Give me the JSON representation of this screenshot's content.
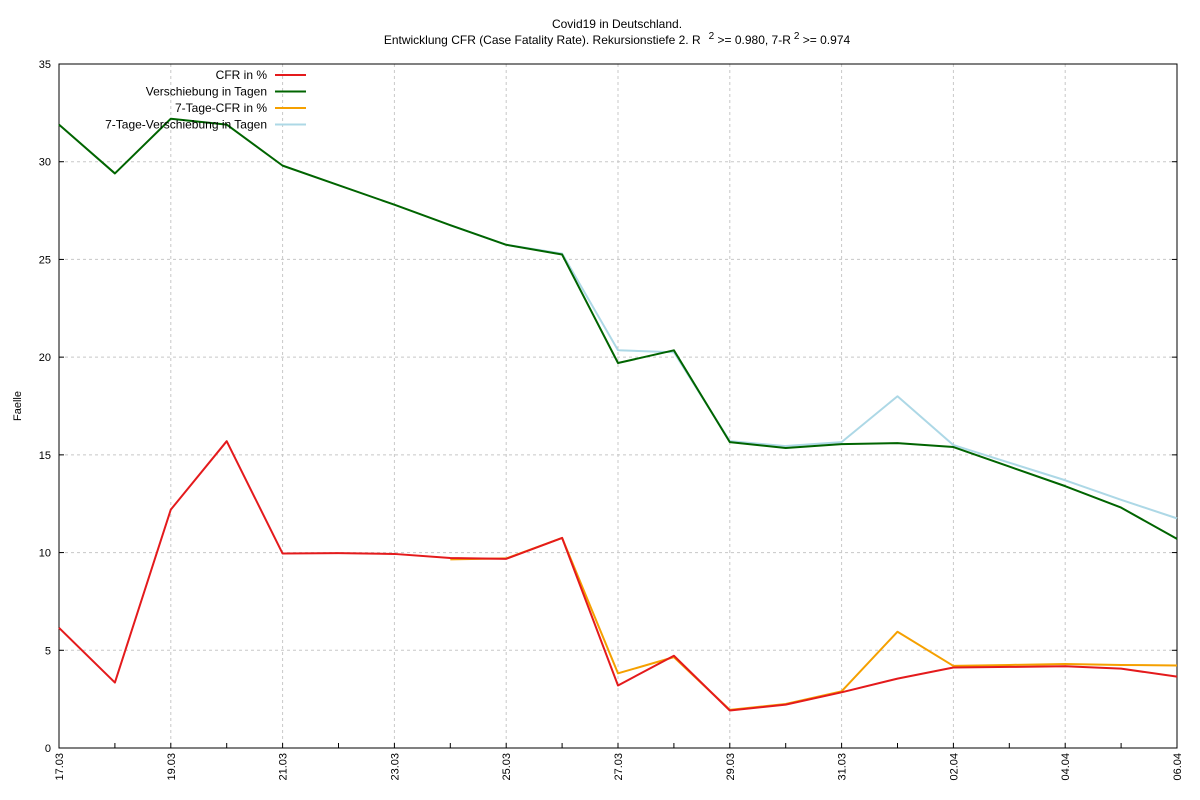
{
  "chart_data": {
    "type": "line",
    "title": "Covid19 in Deutschland.",
    "subtitle": {
      "part1": "Entwicklung CFR (Case Fatality Rate). Rekursionstiefe 2. R",
      "sup1": "2",
      "part2": " >= 0.980, 7-R",
      "sup2": "2",
      "part3": " >= 0.974"
    },
    "xlabel": "",
    "ylabel": "Faelle",
    "ylim": [
      0,
      35
    ],
    "yticks": [
      0,
      5,
      10,
      15,
      20,
      25,
      30,
      35
    ],
    "x": [
      "17.03",
      "18.03",
      "19.03",
      "20.03",
      "21.03",
      "22.03",
      "23.03",
      "24.03",
      "25.03",
      "26.03",
      "27.03",
      "28.03",
      "29.03",
      "30.03",
      "31.03",
      "01.04",
      "02.04",
      "03.04",
      "04.04",
      "05.04",
      "06.04"
    ],
    "xtick_labels": [
      "17.03",
      "19.03",
      "21.03",
      "23.03",
      "25.03",
      "27.03",
      "29.03",
      "31.03",
      "02.04",
      "04.04",
      "06.04"
    ],
    "grid": true,
    "legend_position": "top-left",
    "series": [
      {
        "name": "CFR in %",
        "color": "#e41a1c",
        "values": [
          6.15,
          3.35,
          12.2,
          15.7,
          9.95,
          9.97,
          9.93,
          9.72,
          9.68,
          10.75,
          3.2,
          4.72,
          1.92,
          2.22,
          2.85,
          3.55,
          4.12,
          4.15,
          4.18,
          4.06,
          3.65
        ]
      },
      {
        "name": "Verschiebung in Tagen",
        "color": "#006400",
        "values": [
          31.9,
          29.4,
          32.2,
          31.9,
          29.8,
          28.8,
          27.8,
          26.75,
          25.75,
          25.25,
          19.7,
          20.35,
          15.65,
          15.35,
          15.55,
          15.6,
          15.4,
          14.4,
          13.4,
          12.3,
          10.7
        ]
      },
      {
        "name": "7-Tage-CFR in %",
        "color": "#f5a000",
        "values": [
          null,
          null,
          null,
          null,
          null,
          null,
          null,
          9.65,
          9.7,
          10.75,
          3.82,
          4.65,
          1.95,
          2.25,
          2.9,
          5.95,
          4.2,
          4.25,
          4.3,
          4.25,
          4.22
        ]
      },
      {
        "name": "7-Tage-Verschiebung in Tagen",
        "color": "#add8e6",
        "values": [
          null,
          null,
          null,
          null,
          null,
          null,
          null,
          26.75,
          25.75,
          25.3,
          20.35,
          20.25,
          15.7,
          15.45,
          15.65,
          18.0,
          15.5,
          14.6,
          13.7,
          12.7,
          11.75
        ]
      }
    ]
  }
}
